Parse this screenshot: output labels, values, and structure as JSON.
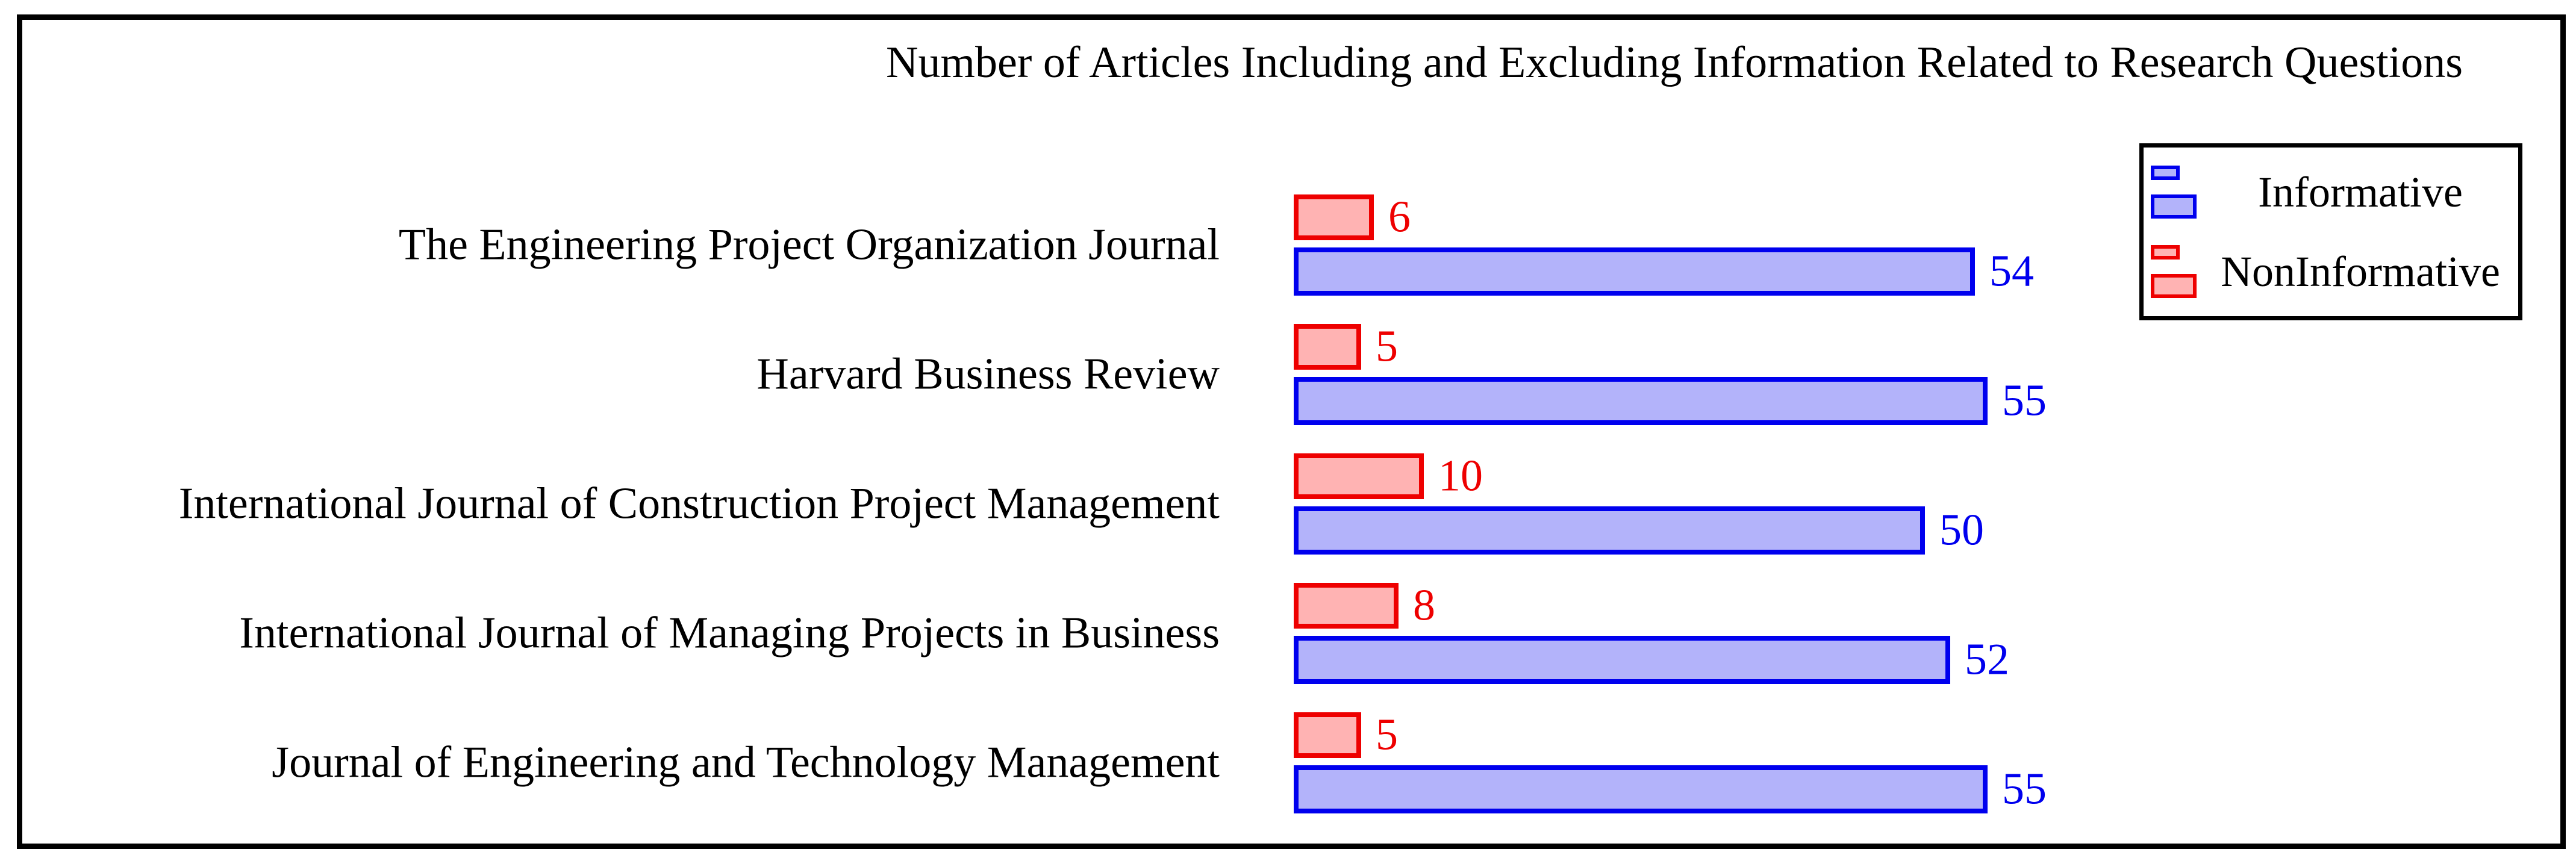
{
  "chart_data": {
    "type": "bar",
    "orientation": "horizontal",
    "title": "Number of Articles Including and Excluding Information Related to Research Questions",
    "categories": [
      "The Engineering Project Organization Journal",
      "Harvard Business Review",
      "International Journal of Construction Project Management",
      "International Journal of Managing Projects in Business",
      "Journal of Engineering and Technology Management"
    ],
    "series": [
      {
        "name": "Informative",
        "values": [
          54,
          55,
          50,
          52,
          55
        ],
        "border_color": "#0000EE",
        "fill_color": "#B3B3FA"
      },
      {
        "name": "NonInformative",
        "values": [
          6,
          5,
          10,
          8,
          5
        ],
        "border_color": "#EE0000",
        "fill_color": "#FFB3B3"
      }
    ],
    "bar_order_within_group": [
      "NonInformative",
      "Informative"
    ],
    "value_labels": true,
    "xlim": [
      0,
      60
    ],
    "grid": false,
    "axes_visible": false,
    "frame_color": "#000000",
    "legend": {
      "position": "top-right",
      "entries": [
        "Informative",
        "NonInformative"
      ]
    }
  }
}
